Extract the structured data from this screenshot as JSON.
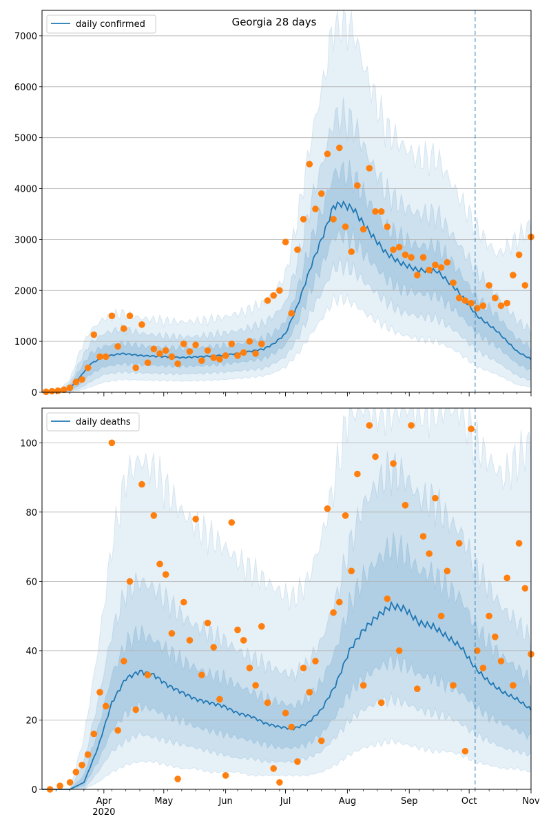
{
  "title": "Georgia 28 days",
  "colors": {
    "line": "#1f77b4",
    "points": "#ff7f0e",
    "band": "#1f77b4",
    "grid": "#b0b0b0"
  },
  "x_axis": {
    "start_date": "2020-03-01",
    "end_date": "2020-11-01",
    "month_labels": [
      "Apr",
      "May",
      "Jun",
      "Jul",
      "Aug",
      "Sep",
      "Oct",
      "Nov"
    ],
    "month_dates": [
      "2020-04-01",
      "2020-05-01",
      "2020-06-01",
      "2020-07-01",
      "2020-08-01",
      "2020-09-01",
      "2020-10-01",
      "2020-11-01"
    ],
    "year_label": "2020",
    "forecast_start_date": "2020-10-04"
  },
  "chart_data": [
    {
      "type": "line",
      "name": "daily confirmed",
      "legend": "daily confirmed",
      "legend_position": "upper-left",
      "ylim": [
        0,
        7500
      ],
      "yticks": [
        "0",
        "1000",
        "2000",
        "3000",
        "4000",
        "5000",
        "6000",
        "7000"
      ],
      "ytick_values": [
        0,
        1000,
        2000,
        3000,
        4000,
        5000,
        6000,
        7000
      ],
      "grid": "horizontal",
      "median": {
        "dates": [
          "2020-03-01",
          "2020-03-10",
          "2020-03-15",
          "2020-03-20",
          "2020-03-25",
          "2020-04-01",
          "2020-04-10",
          "2020-04-20",
          "2020-05-01",
          "2020-05-10",
          "2020-05-20",
          "2020-06-01",
          "2020-06-10",
          "2020-06-20",
          "2020-06-25",
          "2020-07-01",
          "2020-07-07",
          "2020-07-14",
          "2020-07-21",
          "2020-07-25",
          "2020-07-29",
          "2020-08-04",
          "2020-08-10",
          "2020-08-20",
          "2020-08-27",
          "2020-09-05",
          "2020-09-15",
          "2020-09-25",
          "2020-10-05",
          "2020-10-15",
          "2020-10-25",
          "2020-11-01"
        ],
        "values": [
          0,
          20,
          80,
          300,
          550,
          700,
          760,
          720,
          700,
          680,
          700,
          730,
          780,
          850,
          950,
          1150,
          1700,
          2500,
          3200,
          3650,
          3700,
          3600,
          3250,
          2750,
          2550,
          2400,
          2380,
          2000,
          1500,
          1200,
          800,
          650
        ]
      },
      "band_50": {
        "lower": [
          0,
          10,
          40,
          150,
          350,
          500,
          560,
          540,
          520,
          510,
          520,
          560,
          600,
          660,
          760,
          930,
          1380,
          2050,
          2650,
          3050,
          3100,
          3000,
          2700,
          2250,
          2050,
          1950,
          1900,
          1580,
          1150,
          900,
          560,
          430
        ],
        "upper": [
          0,
          30,
          120,
          450,
          750,
          900,
          960,
          900,
          880,
          860,
          880,
          910,
          960,
          1050,
          1160,
          1380,
          2020,
          2970,
          3760,
          4270,
          4330,
          4220,
          3820,
          3250,
          3050,
          2870,
          2860,
          2420,
          1850,
          1500,
          1050,
          870
        ]
      },
      "band_80": {
        "lower": [
          0,
          5,
          20,
          80,
          200,
          350,
          400,
          380,
          370,
          360,
          370,
          400,
          430,
          470,
          560,
          700,
          1050,
          1600,
          2100,
          2450,
          2500,
          2400,
          2150,
          1800,
          1600,
          1500,
          1450,
          1180,
          820,
          600,
          330,
          230
        ],
        "upper": [
          0,
          40,
          180,
          600,
          950,
          1150,
          1250,
          1150,
          1100,
          1080,
          1100,
          1160,
          1230,
          1350,
          1500,
          1750,
          2550,
          3750,
          4700,
          5350,
          5400,
          5250,
          4750,
          3950,
          3700,
          3500,
          3480,
          2950,
          2350,
          1900,
          1400,
          1200
        ]
      },
      "band_95": {
        "lower": [
          0,
          2,
          10,
          40,
          100,
          200,
          250,
          240,
          230,
          220,
          230,
          250,
          280,
          320,
          380,
          500,
          750,
          1150,
          1550,
          1800,
          1850,
          1750,
          1550,
          1300,
          1150,
          1050,
          1000,
          800,
          500,
          350,
          150,
          100
        ],
        "upper": [
          0,
          60,
          250,
          800,
          1200,
          1450,
          1550,
          1450,
          1400,
          1380,
          1400,
          1480,
          1580,
          1750,
          1950,
          2300,
          3400,
          5000,
          6300,
          7200,
          7300,
          7100,
          6300,
          5200,
          4900,
          4600,
          4600,
          3900,
          3200,
          2700,
          3000,
          3300
        ]
      },
      "observed": {
        "dates": [
          "2020-03-03",
          "2020-03-06",
          "2020-03-09",
          "2020-03-12",
          "2020-03-15",
          "2020-03-18",
          "2020-03-21",
          "2020-03-24",
          "2020-03-27",
          "2020-03-30",
          "2020-04-02",
          "2020-04-05",
          "2020-04-08",
          "2020-04-11",
          "2020-04-14",
          "2020-04-17",
          "2020-04-20",
          "2020-04-23",
          "2020-04-26",
          "2020-04-29",
          "2020-05-02",
          "2020-05-05",
          "2020-05-08",
          "2020-05-11",
          "2020-05-14",
          "2020-05-17",
          "2020-05-20",
          "2020-05-23",
          "2020-05-26",
          "2020-05-29",
          "2020-06-01",
          "2020-06-04",
          "2020-06-07",
          "2020-06-10",
          "2020-06-13",
          "2020-06-16",
          "2020-06-19",
          "2020-06-22",
          "2020-06-25",
          "2020-06-28",
          "2020-07-01",
          "2020-07-04",
          "2020-07-07",
          "2020-07-10",
          "2020-07-13",
          "2020-07-16",
          "2020-07-19",
          "2020-07-22",
          "2020-07-25",
          "2020-07-28",
          "2020-07-31",
          "2020-08-03",
          "2020-08-06",
          "2020-08-09",
          "2020-08-12",
          "2020-08-15",
          "2020-08-18",
          "2020-08-21",
          "2020-08-24",
          "2020-08-27",
          "2020-08-30",
          "2020-09-02",
          "2020-09-05",
          "2020-09-08",
          "2020-09-11",
          "2020-09-14",
          "2020-09-17",
          "2020-09-20",
          "2020-09-23",
          "2020-09-26",
          "2020-09-29",
          "2020-10-02",
          "2020-10-05",
          "2020-10-08",
          "2020-10-11",
          "2020-10-14",
          "2020-10-17",
          "2020-10-20",
          "2020-10-23",
          "2020-10-26",
          "2020-10-29",
          "2020-11-01"
        ],
        "values": [
          10,
          20,
          30,
          50,
          90,
          200,
          250,
          480,
          1130,
          700,
          700,
          1500,
          900,
          1250,
          1500,
          480,
          1330,
          580,
          850,
          760,
          820,
          700,
          560,
          950,
          800,
          930,
          620,
          820,
          680,
          650,
          720,
          950,
          720,
          780,
          1000,
          760,
          950,
          1800,
          1900,
          2000,
          2950,
          1550,
          2800,
          3400,
          4480,
          3600,
          3900,
          4680,
          3400,
          4800,
          3250,
          2760,
          4060,
          3200,
          4400,
          3550,
          3550,
          3250,
          2800,
          2850,
          2700,
          2650,
          2300,
          2650,
          2400,
          2500,
          2450,
          2550,
          2150,
          1850,
          1800,
          1750,
          1650,
          1700,
          2100,
          1850,
          1700,
          1750,
          2300,
          2700,
          2100,
          3050
        ]
      }
    },
    {
      "type": "line",
      "name": "daily deaths",
      "legend": "daily deaths",
      "legend_position": "upper-left",
      "ylim": [
        0,
        110
      ],
      "yticks": [
        "0",
        "20",
        "40",
        "60",
        "80",
        "100"
      ],
      "ytick_values": [
        0,
        20,
        40,
        60,
        80,
        100
      ],
      "grid": "horizontal",
      "median": {
        "dates": [
          "2020-03-01",
          "2020-03-15",
          "2020-03-22",
          "2020-03-29",
          "2020-04-05",
          "2020-04-12",
          "2020-04-19",
          "2020-04-26",
          "2020-05-03",
          "2020-05-10",
          "2020-05-17",
          "2020-05-24",
          "2020-05-31",
          "2020-06-07",
          "2020-06-14",
          "2020-06-21",
          "2020-06-28",
          "2020-07-05",
          "2020-07-12",
          "2020-07-19",
          "2020-07-26",
          "2020-08-02",
          "2020-08-09",
          "2020-08-16",
          "2020-08-23",
          "2020-08-30",
          "2020-09-06",
          "2020-09-13",
          "2020-09-20",
          "2020-09-27",
          "2020-10-04",
          "2020-10-11",
          "2020-10-18",
          "2020-10-25",
          "2020-11-01"
        ],
        "values": [
          0,
          0,
          2,
          12,
          25,
          32,
          34,
          33,
          30,
          28,
          26,
          25,
          24,
          22,
          21,
          19,
          18,
          17.5,
          19,
          23,
          30,
          40,
          46,
          50,
          53,
          52,
          48,
          47,
          44,
          41,
          35,
          31,
          28,
          26,
          23
        ]
      },
      "band_50": {
        "lower": [
          0,
          0,
          1,
          8,
          17,
          22,
          24,
          23,
          21,
          20,
          18,
          17,
          16,
          15,
          14,
          13,
          12,
          12,
          13,
          16,
          21,
          28,
          32,
          35,
          37,
          36,
          33,
          32,
          30,
          28,
          24,
          21,
          19,
          17,
          15
        ],
        "upper": [
          0,
          0,
          4,
          17,
          33,
          42,
          45,
          43,
          40,
          37,
          35,
          33,
          32,
          30,
          28,
          26,
          25,
          24,
          26,
          31,
          40,
          53,
          61,
          66,
          70,
          68,
          63,
          62,
          58,
          55,
          47,
          42,
          38,
          35,
          31
        ]
      },
      "band_80": {
        "lower": [
          0,
          0,
          0,
          5,
          11,
          14,
          16,
          15,
          14,
          13,
          12,
          11,
          10,
          9,
          9,
          8,
          8,
          8,
          9,
          11,
          15,
          20,
          23,
          25,
          26,
          25,
          23,
          22,
          21,
          19,
          16,
          14,
          12,
          11,
          10
        ],
        "upper": [
          0,
          0,
          8,
          25,
          45,
          57,
          60,
          58,
          54,
          50,
          47,
          45,
          43,
          40,
          38,
          36,
          34,
          33,
          36,
          43,
          54,
          70,
          82,
          88,
          92,
          90,
          84,
          83,
          78,
          74,
          64,
          58,
          52,
          48,
          43
        ]
      },
      "band_95": {
        "lower": [
          0,
          0,
          0,
          2,
          5,
          7,
          8,
          8,
          7,
          6,
          6,
          5,
          5,
          5,
          4,
          4,
          4,
          4,
          4,
          5,
          7,
          10,
          12,
          13,
          14,
          13,
          12,
          11,
          11,
          10,
          8,
          7,
          6,
          6,
          5
        ],
        "upper": [
          0,
          0,
          15,
          40,
          70,
          90,
          95,
          92,
          86,
          80,
          76,
          73,
          70,
          66,
          63,
          60,
          57,
          55,
          60,
          72,
          90,
          110,
          110,
          110,
          110,
          110,
          110,
          110,
          110,
          110,
          100,
          95,
          90,
          95,
          100
        ]
      },
      "observed": {
        "dates": [
          "2020-03-05",
          "2020-03-10",
          "2020-03-15",
          "2020-03-18",
          "2020-03-21",
          "2020-03-24",
          "2020-03-27",
          "2020-03-30",
          "2020-04-02",
          "2020-04-05",
          "2020-04-08",
          "2020-04-11",
          "2020-04-14",
          "2020-04-17",
          "2020-04-20",
          "2020-04-23",
          "2020-04-26",
          "2020-04-29",
          "2020-05-02",
          "2020-05-05",
          "2020-05-08",
          "2020-05-11",
          "2020-05-14",
          "2020-05-17",
          "2020-05-20",
          "2020-05-23",
          "2020-05-26",
          "2020-05-29",
          "2020-06-01",
          "2020-06-04",
          "2020-06-07",
          "2020-06-10",
          "2020-06-13",
          "2020-06-16",
          "2020-06-19",
          "2020-06-22",
          "2020-06-25",
          "2020-06-28",
          "2020-07-01",
          "2020-07-04",
          "2020-07-07",
          "2020-07-10",
          "2020-07-13",
          "2020-07-16",
          "2020-07-19",
          "2020-07-22",
          "2020-07-25",
          "2020-07-28",
          "2020-07-31",
          "2020-08-03",
          "2020-08-06",
          "2020-08-09",
          "2020-08-12",
          "2020-08-15",
          "2020-08-18",
          "2020-08-21",
          "2020-08-24",
          "2020-08-27",
          "2020-08-30",
          "2020-09-02",
          "2020-09-05",
          "2020-09-08",
          "2020-09-11",
          "2020-09-14",
          "2020-09-17",
          "2020-09-20",
          "2020-09-23",
          "2020-09-26",
          "2020-09-29",
          "2020-10-02",
          "2020-10-05",
          "2020-10-08",
          "2020-10-11",
          "2020-10-14",
          "2020-10-17",
          "2020-10-20",
          "2020-10-23",
          "2020-10-26",
          "2020-10-29",
          "2020-11-01"
        ],
        "values": [
          0,
          1,
          2,
          5,
          7,
          10,
          16,
          28,
          24,
          100,
          17,
          37,
          60,
          23,
          88,
          33,
          79,
          65,
          62,
          45,
          3,
          54,
          43,
          78,
          33,
          48,
          41,
          26,
          4,
          77,
          46,
          43,
          35,
          30,
          47,
          25,
          6,
          2,
          22,
          18,
          8,
          35,
          28,
          37,
          14,
          81,
          51,
          54,
          79,
          63,
          91,
          30,
          105,
          96,
          25,
          55,
          94,
          40,
          82,
          105,
          29,
          73,
          68,
          84,
          50,
          63,
          30,
          71,
          11,
          104,
          40,
          35,
          50,
          44,
          37,
          61,
          30,
          71,
          58,
          39
        ]
      }
    }
  ]
}
